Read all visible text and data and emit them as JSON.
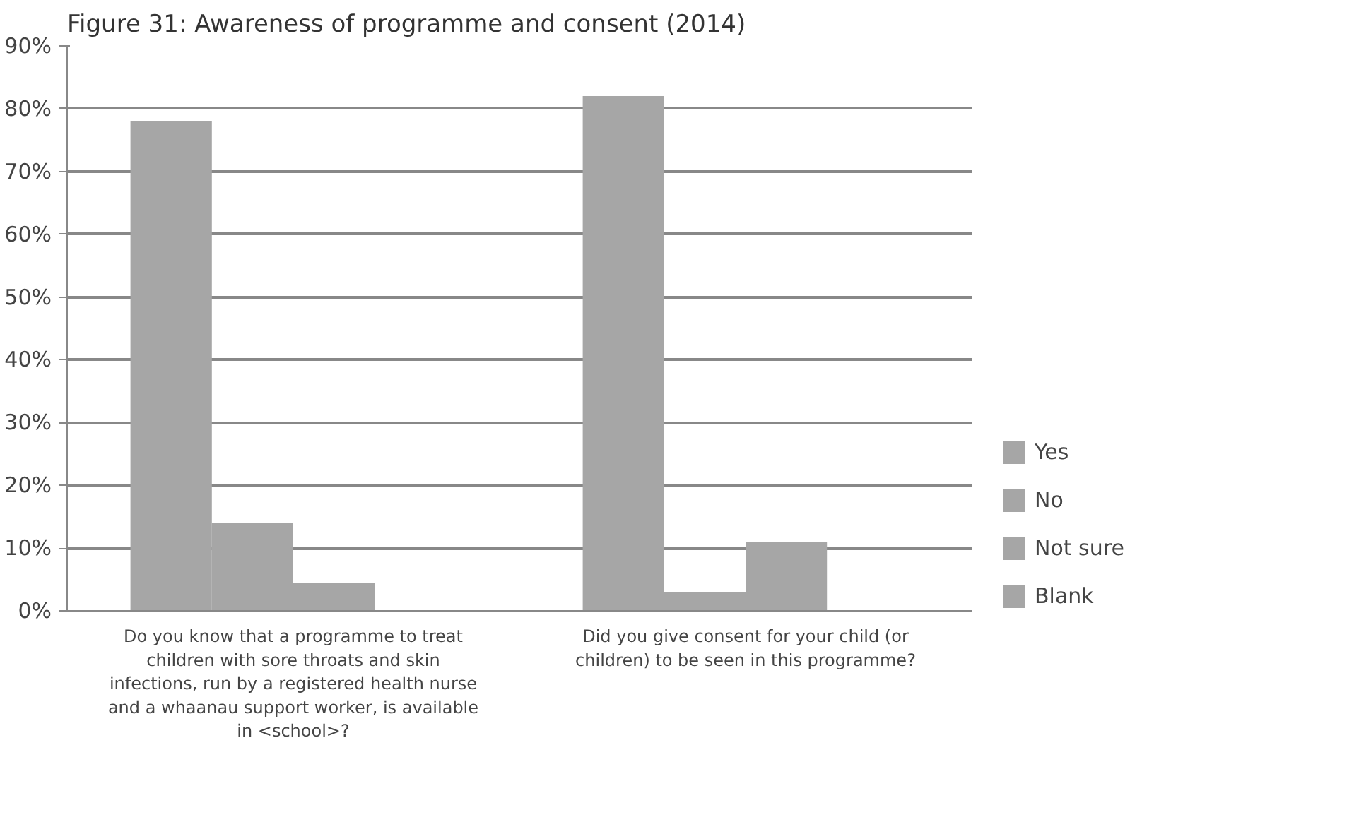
{
  "chart_data": {
    "type": "bar",
    "title": "Figure 31: Awareness of programme and consent (2014)",
    "categories": [
      "Do you know that a programme to treat children with sore throats and skin infections, run by a registered health nurse and a whaanau support worker, is available in <school>?",
      "Did you give consent for your child (or children) to be seen in this programme?"
    ],
    "series": [
      {
        "name": "Yes",
        "color": "#a6a6a6",
        "values": [
          78,
          82
        ]
      },
      {
        "name": "No",
        "color": "#a6a6a6",
        "values": [
          14,
          3
        ]
      },
      {
        "name": "Not sure",
        "color": "#a6a6a6",
        "values": [
          4.5,
          11
        ]
      },
      {
        "name": "Blank",
        "color": "#a6a6a6",
        "values": [
          0,
          0
        ]
      }
    ],
    "ylim": [
      0,
      90
    ],
    "yticks": [
      {
        "value": 0,
        "label": "0%"
      },
      {
        "value": 10,
        "label": "10%"
      },
      {
        "value": 20,
        "label": "20%"
      },
      {
        "value": 30,
        "label": "30%"
      },
      {
        "value": 40,
        "label": "40%"
      },
      {
        "value": 50,
        "label": "50%"
      },
      {
        "value": 60,
        "label": "60%"
      },
      {
        "value": 70,
        "label": "70%"
      },
      {
        "value": 80,
        "label": "80%"
      },
      {
        "value": 90,
        "label": "90%"
      }
    ],
    "grid": "y",
    "legend": "right"
  }
}
